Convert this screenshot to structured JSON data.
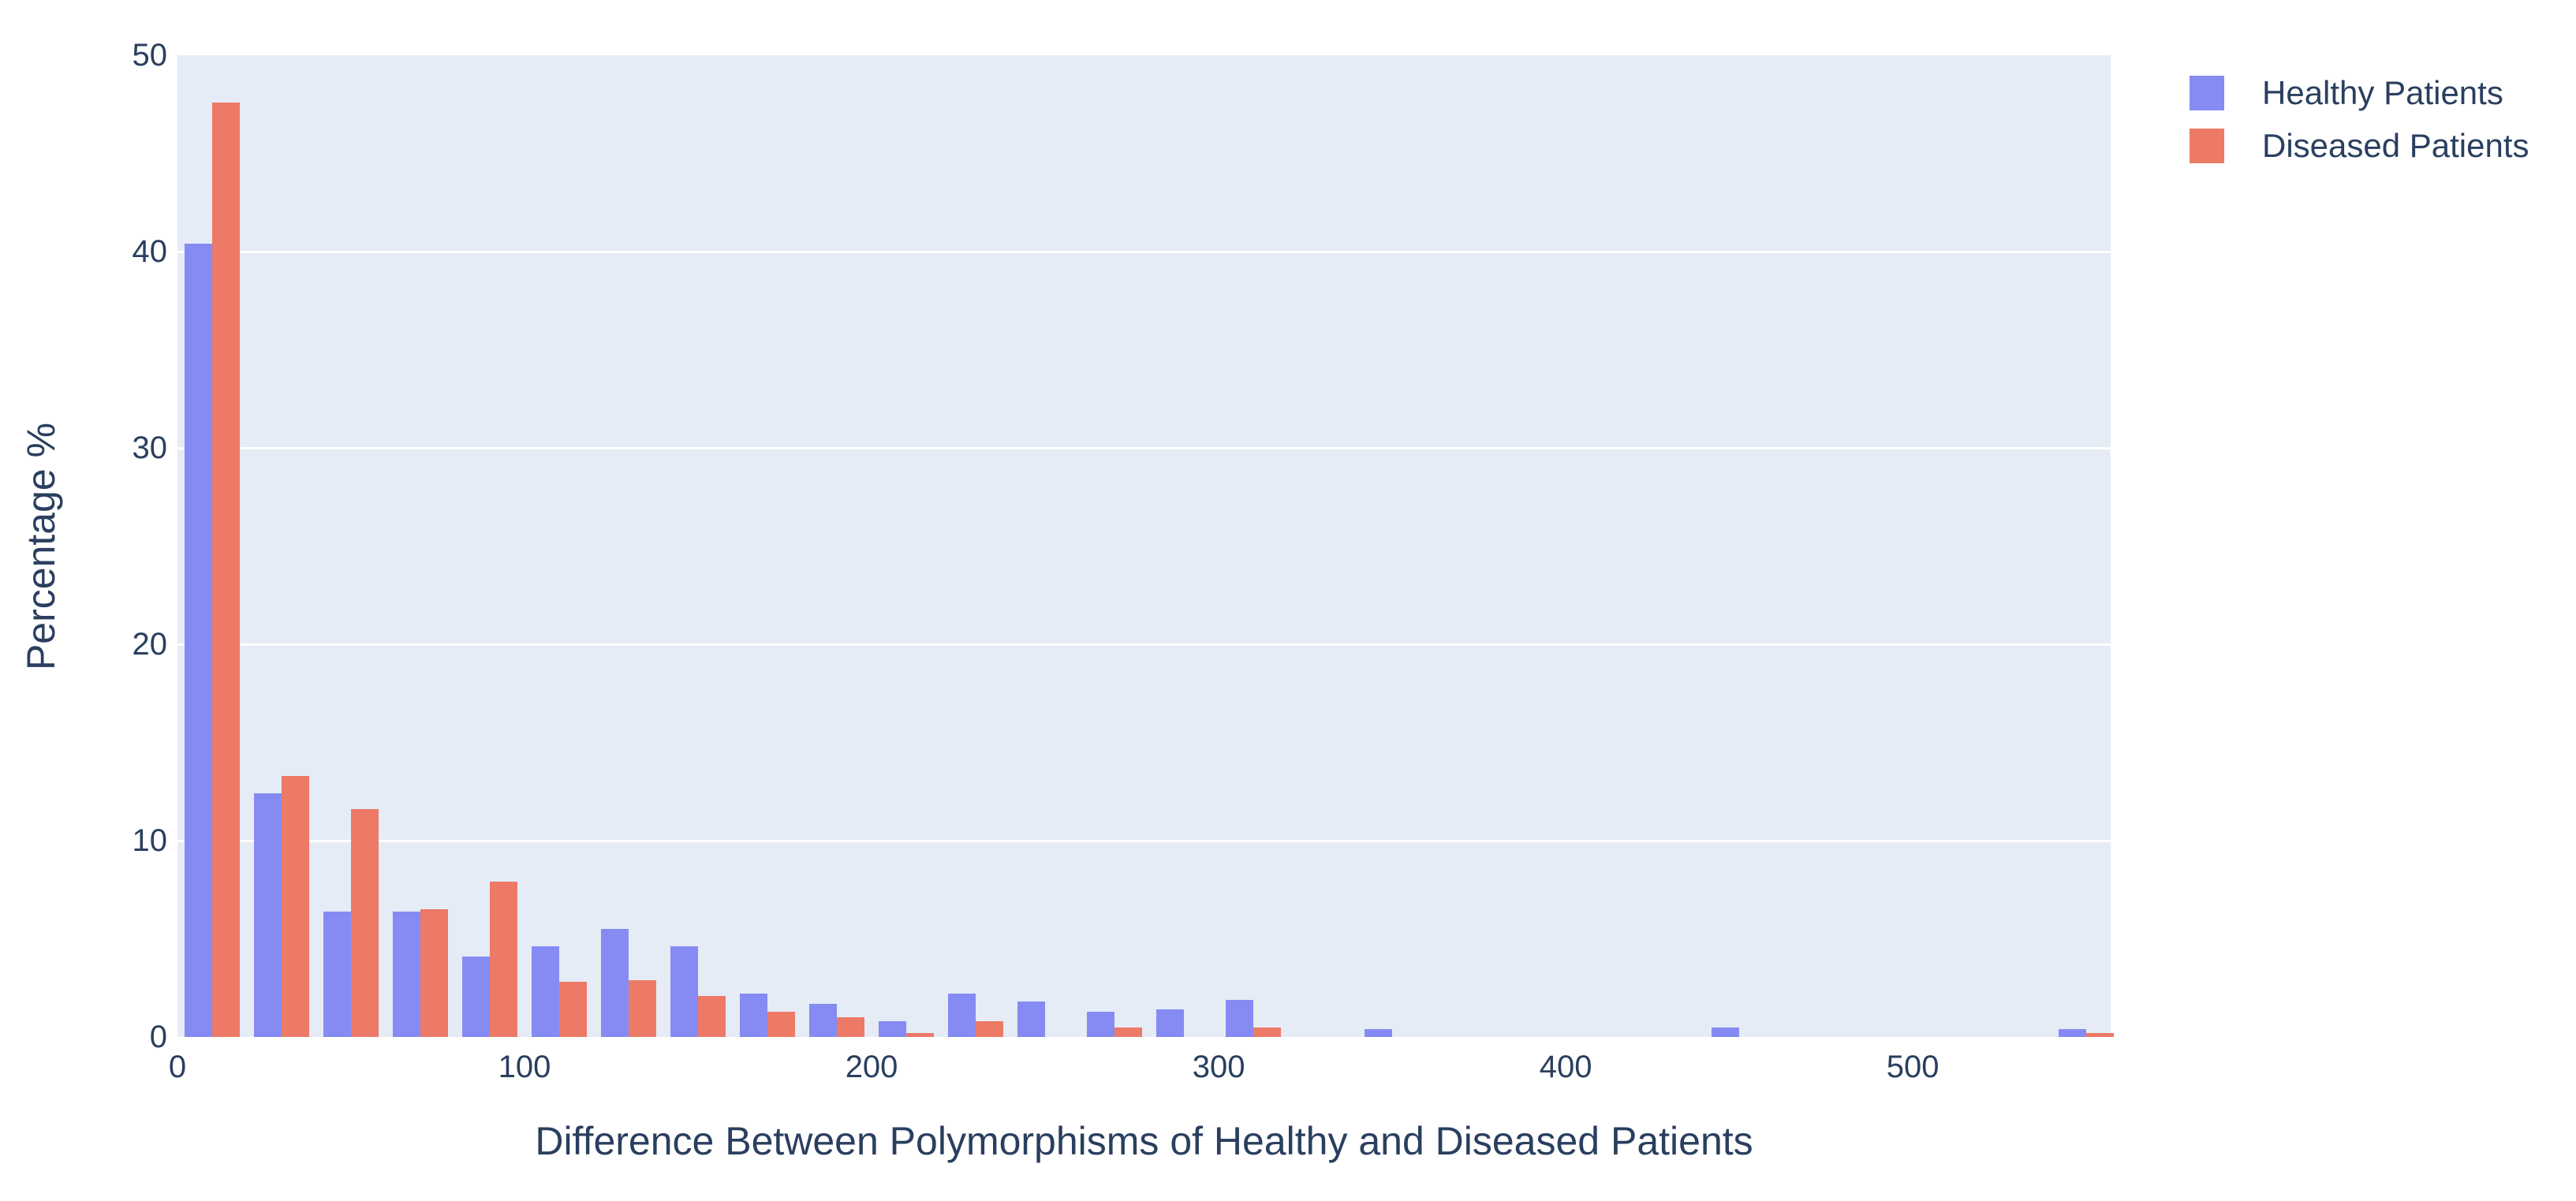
{
  "chart_data": {
    "type": "bar",
    "subtype": "grouped-histogram",
    "title": "",
    "xlabel": "Difference Between Polymorphisms of Healthy and Diseased Patients",
    "ylabel": "Percentage %",
    "x_ticks": [
      0,
      100,
      200,
      300,
      400,
      500
    ],
    "y_ticks": [
      0,
      10,
      20,
      30,
      40,
      50
    ],
    "xlim": [
      0,
      557
    ],
    "ylim": [
      0,
      50
    ],
    "grid": "horizontal-only",
    "legend_position": "top-right-outside",
    "bin_width": 20,
    "bin_starts": [
      0,
      20,
      40,
      60,
      80,
      100,
      120,
      140,
      160,
      180,
      200,
      220,
      240,
      260,
      280,
      300,
      320,
      340,
      360,
      380,
      400,
      420,
      440,
      460,
      480,
      500,
      520,
      540
    ],
    "series": [
      {
        "name": "Healthy Patients",
        "color": "#858BF2",
        "values": [
          40.4,
          12.4,
          6.4,
          6.4,
          4.1,
          4.6,
          5.5,
          4.6,
          2.2,
          1.7,
          0.8,
          2.2,
          1.8,
          1.3,
          1.4,
          1.9,
          0,
          0.4,
          0,
          0,
          0,
          0,
          0.5,
          0,
          0,
          0,
          0,
          0.4
        ]
      },
      {
        "name": "Diseased Patients",
        "color": "#EC7A67",
        "values": [
          47.6,
          13.3,
          11.6,
          6.5,
          7.9,
          2.8,
          2.9,
          2.1,
          1.3,
          1.0,
          0.2,
          0.8,
          0,
          0.5,
          0,
          0.5,
          0,
          0,
          0,
          0,
          0,
          0,
          0,
          0,
          0,
          0,
          0,
          0.2
        ]
      }
    ],
    "colors": {
      "plot_background": "#E5ECF6",
      "gridline": "#FFFFFF",
      "text": "#2A3F5F",
      "page_background": "#FFFFFF"
    }
  }
}
